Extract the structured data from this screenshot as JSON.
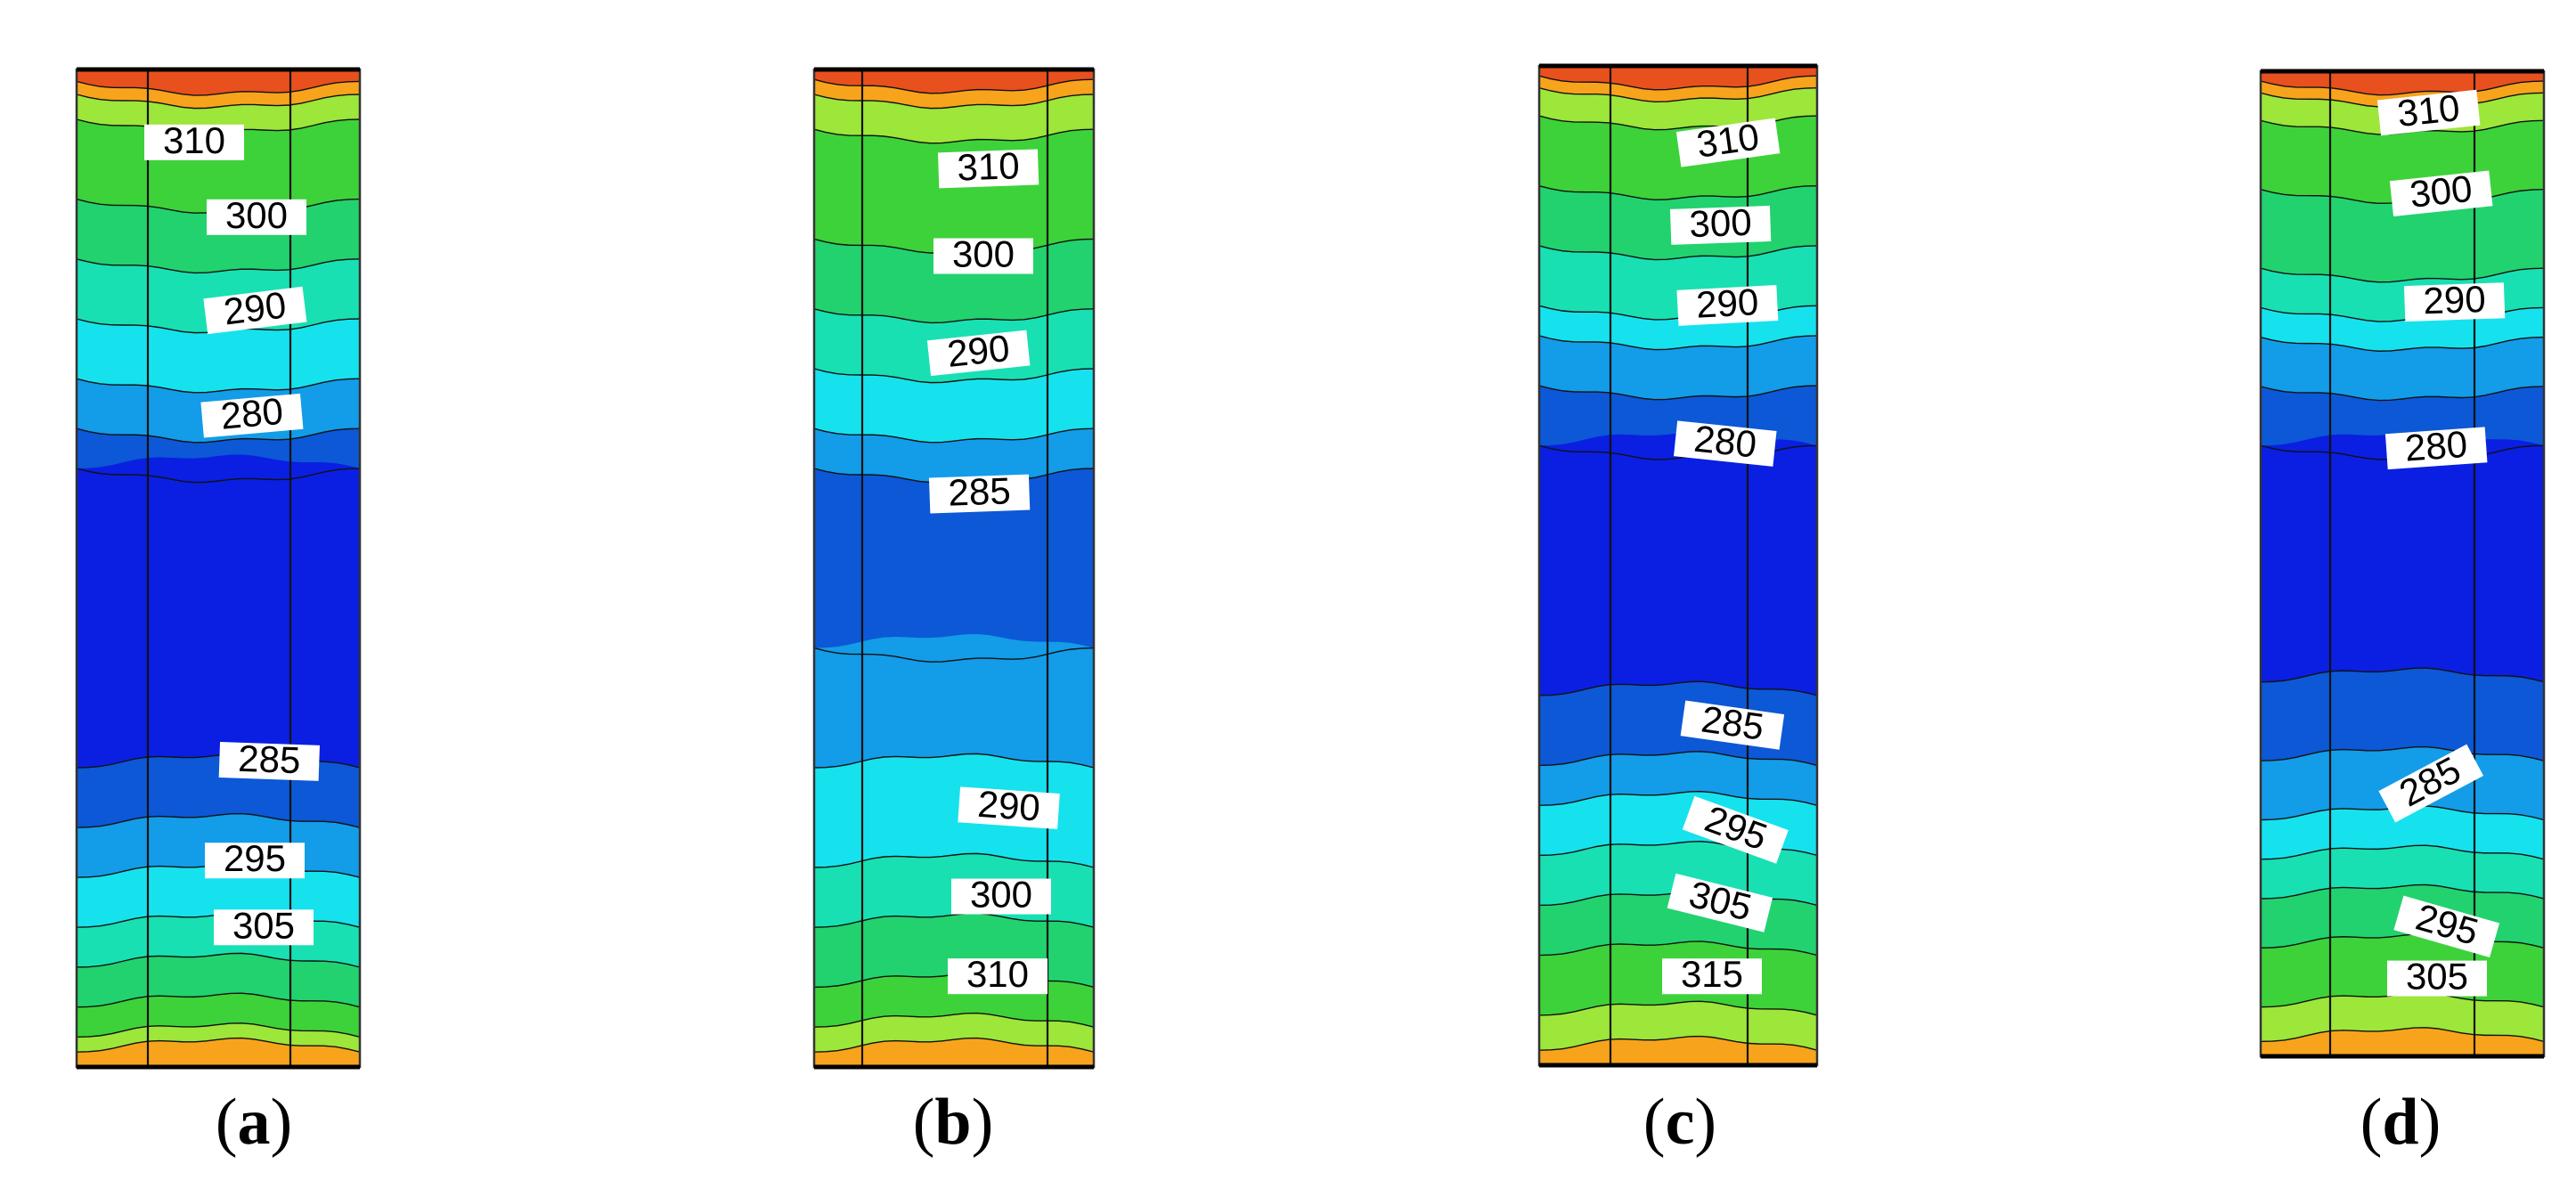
{
  "colors": {
    "red": "#e8501e",
    "orange": "#f7a41c",
    "yellow": "#d8e82a",
    "yellowgreen": "#9de63a",
    "green": "#3dd23a",
    "green2": "#22d26e",
    "teal": "#18e0b2",
    "cyan": "#16e2ee",
    "lightblue": "#139ce8",
    "blue": "#0c58d6",
    "darkblue": "#0a1fe2",
    "line": "#111111"
  },
  "panels": [
    {
      "id": "a",
      "caption_open": "(",
      "caption_letter": "a",
      "caption_close": ")",
      "contour_labels": [
        "310",
        "300",
        "290",
        "280",
        "285",
        "295",
        "305"
      ]
    },
    {
      "id": "b",
      "caption_open": "(",
      "caption_letter": "b",
      "caption_close": ")",
      "contour_labels": [
        "310",
        "300",
        "290",
        "285",
        "290",
        "300",
        "310"
      ]
    },
    {
      "id": "c",
      "caption_open": "(",
      "caption_letter": "c",
      "caption_close": ")",
      "contour_labels": [
        "310",
        "300",
        "290",
        "280",
        "285",
        "295",
        "305",
        "315"
      ]
    },
    {
      "id": "d",
      "caption_open": "(",
      "caption_letter": "d",
      "caption_close": ")",
      "contour_labels": [
        "310",
        "300",
        "290",
        "280",
        "285",
        "295",
        "305"
      ]
    }
  ]
}
